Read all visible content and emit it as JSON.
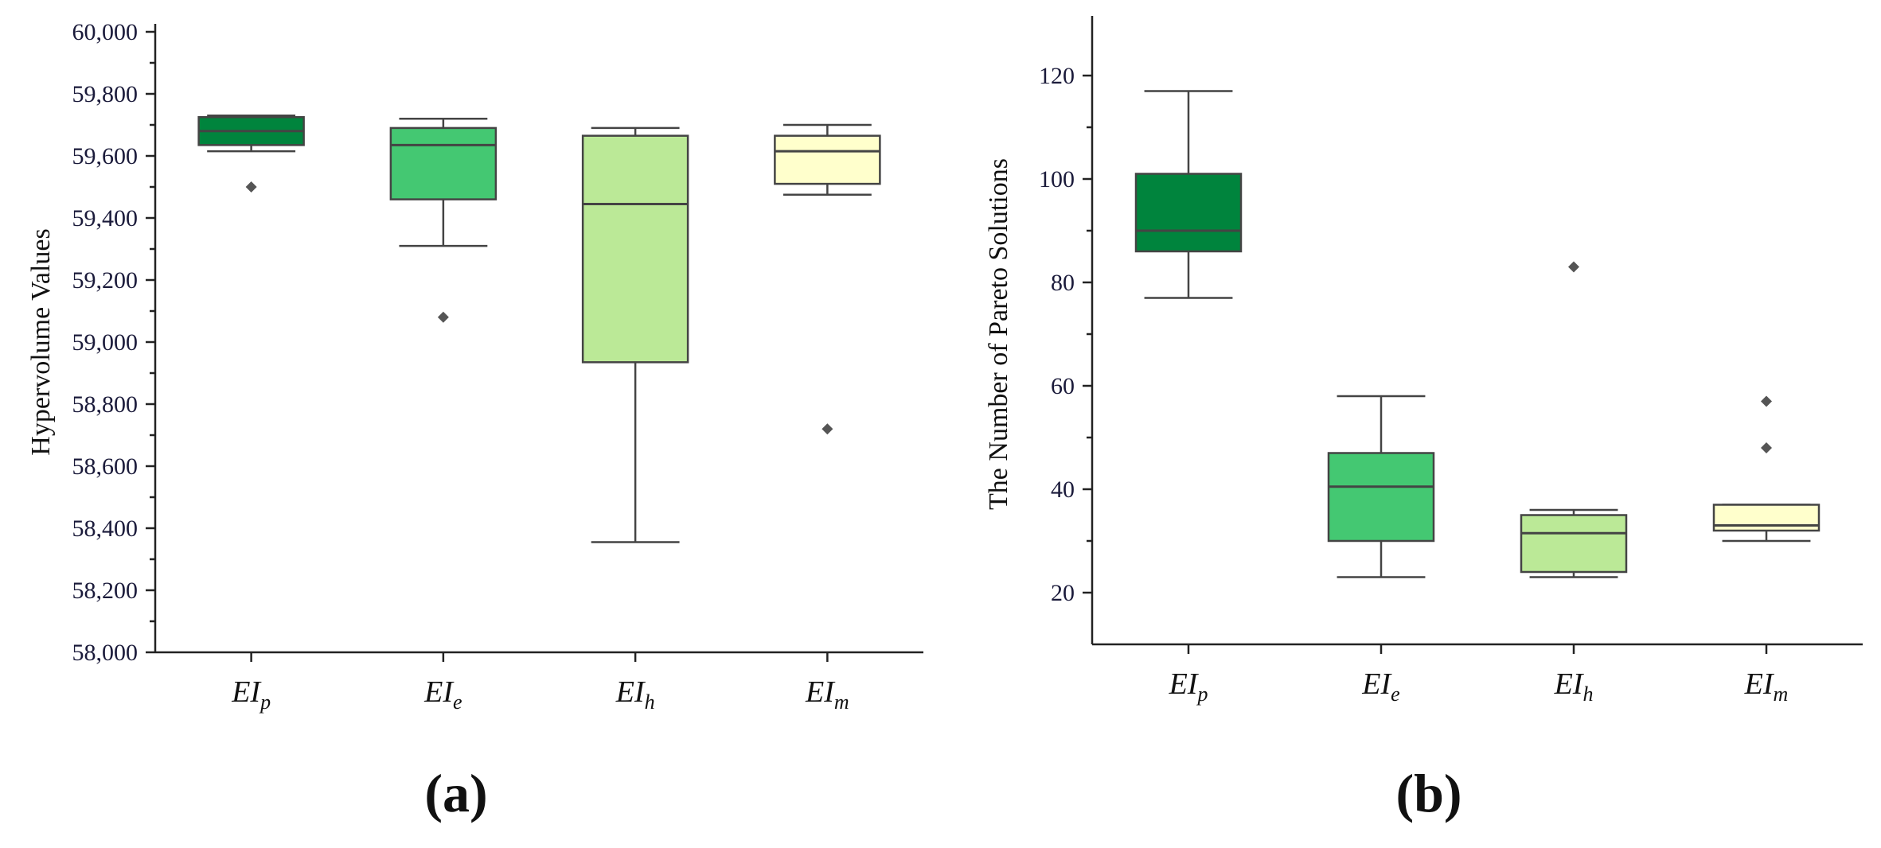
{
  "chart_data": [
    {
      "type": "box",
      "panel_label": "(a)",
      "title": "",
      "xlabel": "",
      "ylabel": "Hypervolume Values",
      "ylim": [
        58000,
        60000
      ],
      "yticks": [
        58000,
        58200,
        58400,
        58600,
        58800,
        59000,
        59200,
        59400,
        59600,
        59800,
        60000
      ],
      "ytick_labels": [
        "58,000",
        "58,200",
        "58,400",
        "58,600",
        "58,800",
        "59,000",
        "59,200",
        "59,400",
        "59,600",
        "59,800",
        "60,000"
      ],
      "categories": [
        {
          "base": "EI",
          "sub": "p"
        },
        {
          "base": "EI",
          "sub": "e"
        },
        {
          "base": "EI",
          "sub": "h"
        },
        {
          "base": "EI",
          "sub": "m"
        }
      ],
      "boxes": [
        {
          "whisker_low": 59615,
          "q1": 59635,
          "median": 59680,
          "q3": 59725,
          "whisker_high": 59730,
          "outliers": [
            59500
          ],
          "color": "#00843d"
        },
        {
          "whisker_low": 59310,
          "q1": 59460,
          "median": 59635,
          "q3": 59690,
          "whisker_high": 59720,
          "outliers": [
            59080
          ],
          "color": "#44c872"
        },
        {
          "whisker_low": 58355,
          "q1": 58935,
          "median": 59445,
          "q3": 59665,
          "whisker_high": 59690,
          "outliers": [],
          "color": "#bbe997"
        },
        {
          "whisker_low": 59475,
          "q1": 59510,
          "median": 59615,
          "q3": 59665,
          "whisker_high": 59700,
          "outliers": [
            58720
          ],
          "color": "#ffffcc"
        }
      ]
    },
    {
      "type": "box",
      "panel_label": "(b)",
      "title": "",
      "xlabel": "",
      "ylabel": "The Number of Pareto Solutions",
      "ylim": [
        10,
        130
      ],
      "yticks": [
        20,
        40,
        60,
        80,
        100,
        120
      ],
      "ytick_labels": [
        "20",
        "40",
        "60",
        "80",
        "100",
        "120"
      ],
      "categories": [
        {
          "base": "EI",
          "sub": "p"
        },
        {
          "base": "EI",
          "sub": "e"
        },
        {
          "base": "EI",
          "sub": "h"
        },
        {
          "base": "EI",
          "sub": "m"
        }
      ],
      "boxes": [
        {
          "whisker_low": 77,
          "q1": 86,
          "median": 90,
          "q3": 101,
          "whisker_high": 117,
          "outliers": [],
          "color": "#00843d"
        },
        {
          "whisker_low": 23,
          "q1": 30,
          "median": 40.5,
          "q3": 47,
          "whisker_high": 58,
          "outliers": [],
          "color": "#44c872"
        },
        {
          "whisker_low": 23,
          "q1": 24,
          "median": 31.5,
          "q3": 35,
          "whisker_high": 36,
          "outliers": [
            83
          ],
          "color": "#bbe997"
        },
        {
          "whisker_low": 30,
          "q1": 32,
          "median": 33,
          "q3": 37,
          "whisker_high": 37,
          "outliers": [
            48,
            57
          ],
          "color": "#ffffcc"
        }
      ]
    }
  ]
}
